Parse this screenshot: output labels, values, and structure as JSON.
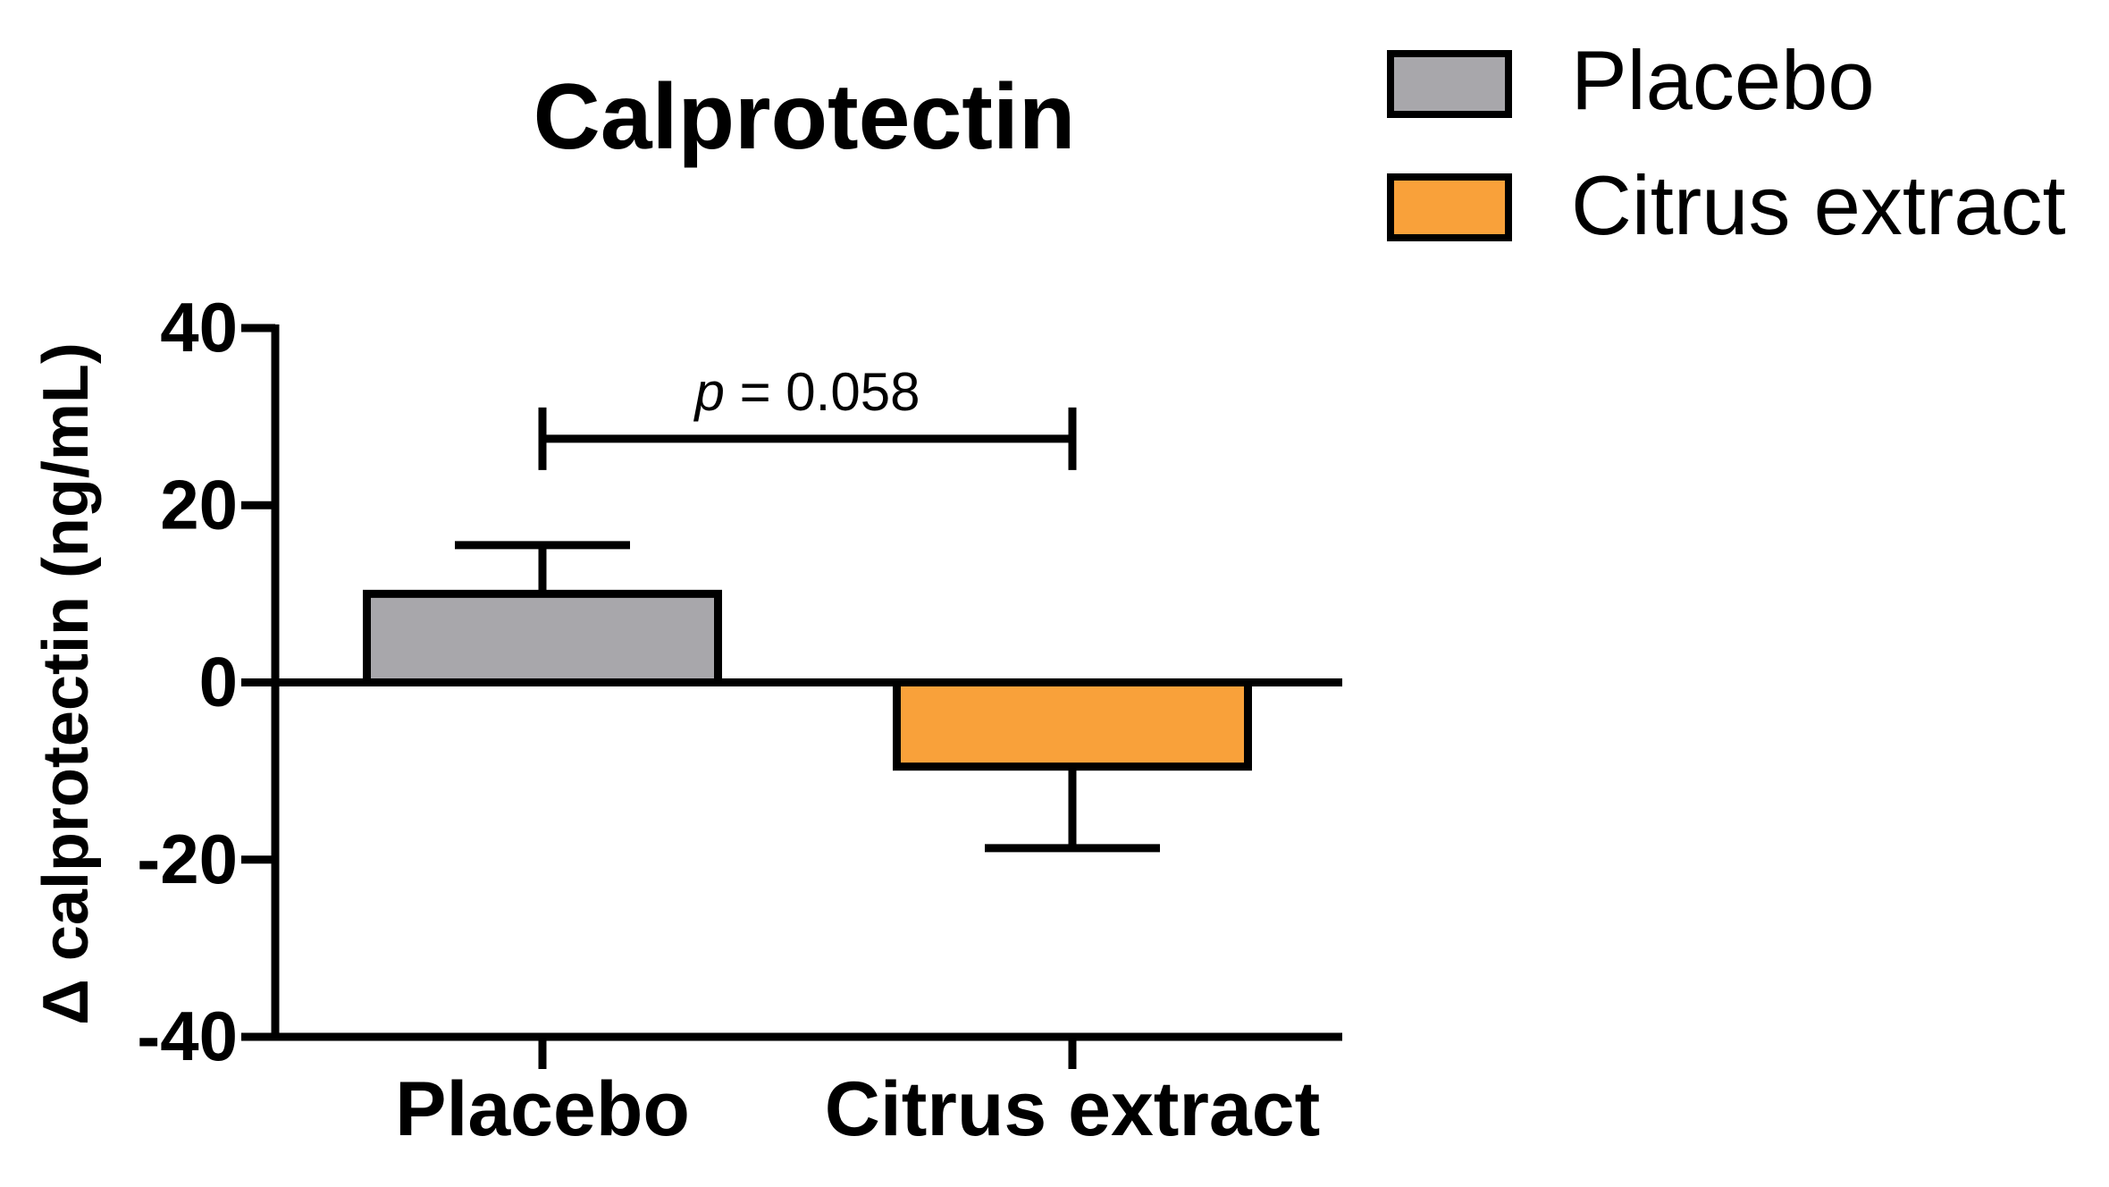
{
  "chart_data": {
    "type": "bar",
    "title": "Calprotectin",
    "xlabel": "",
    "ylabel": "Δ calprotectin (ng/mL)",
    "ylim": [
      -40,
      40
    ],
    "yticks": [
      40,
      20,
      0,
      -20,
      -40
    ],
    "yticks_labels": [
      "40",
      "20",
      "0",
      "-20",
      "-40"
    ],
    "categories": [
      "Placebo",
      "Citrus extract"
    ],
    "values": [
      10,
      -9.5
    ],
    "errors": [
      5.5,
      9.2
    ],
    "error_direction": [
      "up",
      "down"
    ],
    "colors": [
      "#a8a7ab",
      "#f9a13a"
    ],
    "legend": {
      "position": "top-right",
      "entries": [
        {
          "label": "Placebo",
          "color": "#a8a7ab"
        },
        {
          "label": "Citrus extract",
          "color": "#f9a13a"
        }
      ]
    },
    "annotation": {
      "prefix": "p",
      "text": " = 0.058",
      "bracket_y": 27.5,
      "between": [
        "Placebo",
        "Citrus extract"
      ]
    },
    "grid": false
  }
}
